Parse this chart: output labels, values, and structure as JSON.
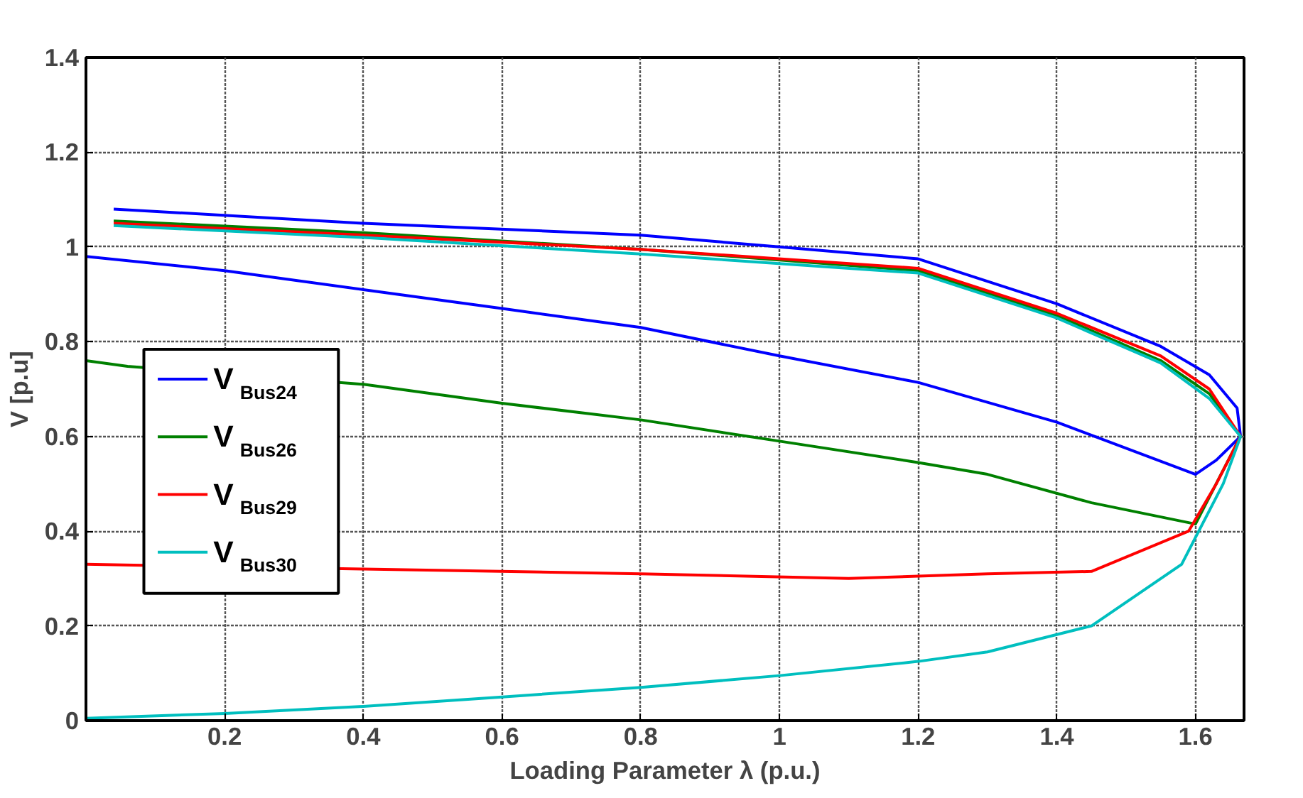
{
  "chart_data": {
    "type": "line",
    "xlabel": "Loading Parameter λ (p.u.)",
    "ylabel": "V [p.u]",
    "xlim": [
      0,
      1.67
    ],
    "ylim": [
      0,
      1.4
    ],
    "xticks": [
      0.2,
      0.4,
      0.6,
      0.8,
      1,
      1.2,
      1.4,
      1.6
    ],
    "yticks": [
      0,
      0.2,
      0.4,
      0.6,
      0.8,
      1,
      1.2,
      1.4
    ],
    "grid": true,
    "legend": "left",
    "line_style": "solid",
    "marker": "none",
    "series": [
      {
        "name": "V$_{Bus24}$",
        "color": "#0000ff",
        "x": [
          0.04,
          0.4,
          0.8,
          1.0,
          1.2,
          1.4,
          1.55,
          1.62,
          1.66,
          1.665,
          1.63,
          1.6,
          1.4,
          1.2,
          1.0,
          0.8,
          0.6,
          0.4,
          0.2,
          0
        ],
        "values": [
          1.08,
          1.05,
          1.025,
          1.0,
          0.975,
          0.88,
          0.79,
          0.73,
          0.66,
          0.6,
          0.55,
          0.52,
          0.63,
          0.714,
          0.77,
          0.83,
          0.87,
          0.91,
          0.95,
          0.98
        ]
      },
      {
        "name": "V$_{Bus26}$",
        "color": "#008000",
        "x": [
          0.04,
          0.4,
          0.8,
          1.2,
          1.4,
          1.55,
          1.62,
          1.665,
          1.6,
          1.45,
          1.3,
          1.2,
          1.0,
          0.8,
          0.6,
          0.4,
          0.06,
          0
        ],
        "values": [
          1.055,
          1.03,
          0.995,
          0.95,
          0.855,
          0.76,
          0.69,
          0.6,
          0.415,
          0.46,
          0.52,
          0.545,
          0.59,
          0.635,
          0.67,
          0.71,
          0.748,
          0.76
        ]
      },
      {
        "name": "V$_{Bus29}$",
        "color": "#ff0000",
        "x": [
          0.04,
          0.4,
          0.8,
          1.2,
          1.4,
          1.55,
          1.62,
          1.665,
          1.63,
          1.59,
          1.45,
          1.3,
          1.1,
          0.8,
          0.4,
          0
        ],
        "values": [
          1.05,
          1.025,
          0.995,
          0.955,
          0.86,
          0.77,
          0.7,
          0.6,
          0.5,
          0.4,
          0.315,
          0.31,
          0.3,
          0.31,
          0.32,
          0.33
        ]
      },
      {
        "name": "V$_{Bus30}$",
        "color": "#00bfbf",
        "x": [
          0.04,
          0.4,
          0.8,
          1.2,
          1.4,
          1.55,
          1.62,
          1.665,
          1.64,
          1.58,
          1.45,
          1.3,
          1.2,
          1.0,
          0.8,
          0.6,
          0.4,
          0.2,
          0
        ],
        "values": [
          1.045,
          1.02,
          0.985,
          0.945,
          0.85,
          0.755,
          0.68,
          0.6,
          0.5,
          0.33,
          0.2,
          0.145,
          0.125,
          0.095,
          0.07,
          0.05,
          0.03,
          0.015,
          0.005
        ]
      }
    ]
  }
}
